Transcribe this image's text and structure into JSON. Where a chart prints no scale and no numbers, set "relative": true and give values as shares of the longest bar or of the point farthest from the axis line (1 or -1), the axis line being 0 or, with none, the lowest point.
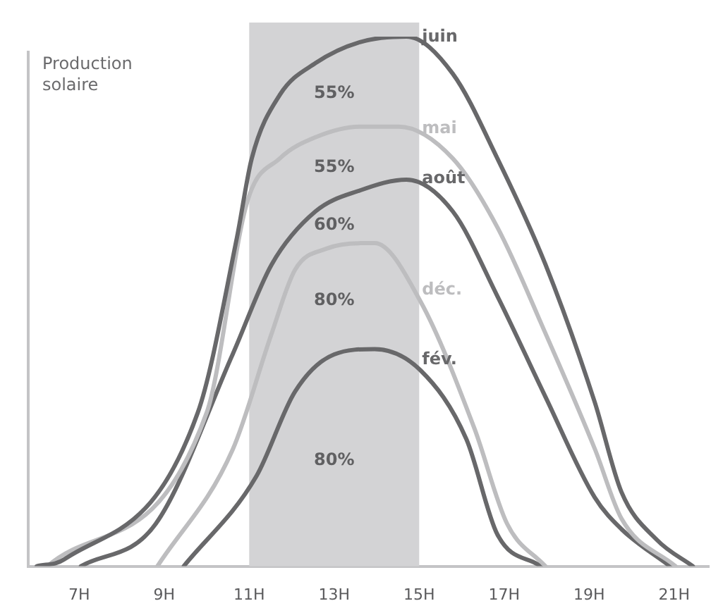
{
  "chart_data": {
    "type": "line",
    "relative": true,
    "ylabel": "Production solaire",
    "xlim": [
      5.8,
      21.8
    ],
    "xticks": [
      {
        "value": 7,
        "label": "7H"
      },
      {
        "value": 9,
        "label": "9H"
      },
      {
        "value": 11,
        "label": "11H"
      },
      {
        "value": 13,
        "label": "13H"
      },
      {
        "value": 15,
        "label": "15H"
      },
      {
        "value": 17,
        "label": "17H"
      },
      {
        "value": 19,
        "label": "19H"
      },
      {
        "value": 21,
        "label": "21H"
      }
    ],
    "series": [
      {
        "name": "juin",
        "color": "#68686a",
        "x": [
          6.0,
          6.65,
          9.79,
          10.71,
          11.06,
          11.72,
          12.56,
          13.62,
          14.7,
          15.79,
          16.84,
          17.97,
          19.13,
          19.76,
          20.59,
          21.44
        ],
        "values": [
          0,
          0.013,
          0.29,
          0.62,
          0.77,
          0.89,
          0.95,
          0.99,
          1,
          0.93,
          0.77,
          0.57,
          0.31,
          0.14,
          0.05,
          0
        ]
      },
      {
        "name": "mai",
        "color": "#bdbdbf",
        "x": [
          6.25,
          10.0,
          10.96,
          11.72,
          12.56,
          13.62,
          14.52,
          15.79,
          16.84,
          17.97,
          19.14,
          19.76,
          21.03
        ],
        "values": [
          0,
          0.29,
          0.69,
          0.77,
          0.81,
          0.83,
          0.83,
          0.77,
          0.64,
          0.44,
          0.22,
          0.09,
          0
        ]
      },
      {
        "name": "août",
        "color": "#68686a",
        "x": [
          7.04,
          8.8,
          10.61,
          11.53,
          12.56,
          13.62,
          14.7,
          15.79,
          16.84,
          17.97,
          19.13,
          19.76,
          20.9
        ],
        "values": [
          0,
          0.08,
          0.4,
          0.57,
          0.67,
          0.71,
          0.73,
          0.67,
          0.51,
          0.32,
          0.13,
          0.07,
          0
        ]
      },
      {
        "name": "déc.",
        "color": "#bdbdbf",
        "x": [
          8.84,
          10.61,
          11.53,
          12.08,
          12.83,
          13.62,
          13.95,
          15.03,
          16.3,
          17.07,
          17.97
        ],
        "values": [
          0,
          0.22,
          0.44,
          0.56,
          0.6,
          0.61,
          0.61,
          0.5,
          0.26,
          0.08,
          0
        ]
      },
      {
        "name": "fév.",
        "color": "#68686a",
        "x": [
          9.46,
          11.17,
          12.08,
          13.0,
          13.95,
          15.03,
          16.11,
          16.84,
          17.86
        ],
        "values": [
          0,
          0.17,
          0.33,
          0.4,
          0.41,
          0.37,
          0.24,
          0.06,
          0
        ]
      }
    ],
    "bands": [
      {
        "axis": "x",
        "from": 11,
        "to": 15,
        "color": "#d3d3d5"
      }
    ],
    "annotations": [
      "55%",
      "55%",
      "60%",
      "80%",
      "80%"
    ],
    "grid": false,
    "legend": false,
    "marker": "none",
    "line_style": "solid"
  }
}
